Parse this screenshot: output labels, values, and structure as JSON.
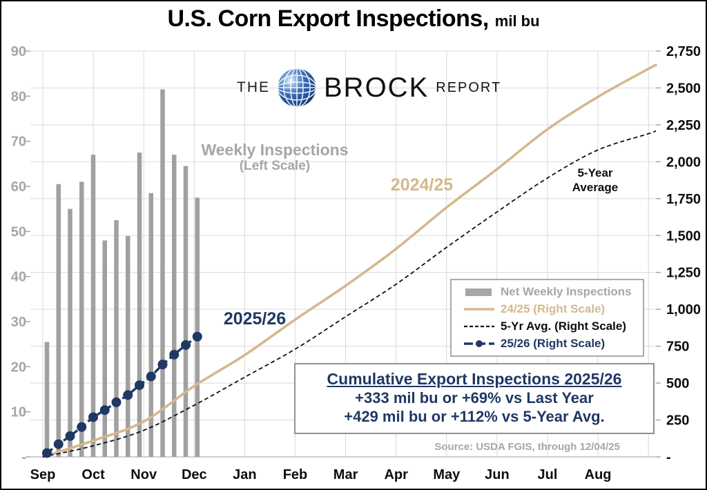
{
  "title": {
    "main": "U.S. Corn Export Inspections,",
    "suffix": "mil bu"
  },
  "logo": {
    "the": "THE",
    "brock": "BROCK",
    "report": "REPORT"
  },
  "annotations": {
    "weekly_line1": "Weekly Inspections",
    "weekly_line2": "(Left Scale)",
    "series_2425": "2024/25",
    "series_2526": "2025/26",
    "avg_line1": "5-Year",
    "avg_line2": "Average"
  },
  "legend": [
    {
      "label": "Net Weekly Inspections",
      "swatch": "bar",
      "color": "#a6a6a6"
    },
    {
      "label": "24/25 (Right Scale)",
      "swatch": "solid",
      "color": "#d3b98c"
    },
    {
      "label": "5-Yr Avg. (Right Scale)",
      "swatch": "dashed",
      "color": "#0d0d0d"
    },
    {
      "label": "25/26 (Right Scale)",
      "swatch": "dashdot",
      "color": "#1f3864"
    }
  ],
  "info_box": {
    "title": "Cumulative Export Inspections 2025/26",
    "line1": "+333 mil bu or +69% vs Last Year",
    "line2": "+429 mil bu or +112% vs 5-Year Avg."
  },
  "source": "Source: USDA FGIS, through 12/04/25",
  "colors": {
    "tan": "#d3b98c",
    "navy": "#1f3864",
    "bar_gray": "#a0a0a0",
    "axis_gray": "#a6a6a6",
    "gridline": "#d9d9d9",
    "baseline": "#bfbfbf",
    "black": "#0d0d0d"
  },
  "chart_data": {
    "type": "combo-bar-line",
    "title": "U.S. Corn Export Inspections, mil bu",
    "x_months": [
      "Sep",
      "Oct",
      "Nov",
      "Dec",
      "Jan",
      "Feb",
      "Mar",
      "Apr",
      "May",
      "Jun",
      "Jul",
      "Aug"
    ],
    "left_axis": {
      "label": "Weekly Inspections (Left Scale)",
      "min": 0,
      "max": 90,
      "tick_step": 10,
      "tick_labels": [
        "90",
        "80",
        "70",
        "60",
        "50",
        "40",
        "30",
        "20",
        "10",
        "-"
      ]
    },
    "right_axis": {
      "min": 0,
      "max": 2750,
      "tick_step": 250,
      "tick_labels": [
        "2,750",
        "2,500",
        "2,250",
        "2,000",
        "1,750",
        "1,500",
        "1,250",
        "1,000",
        "750",
        "500",
        "250",
        "-"
      ]
    },
    "grid": {
      "horizontal": true,
      "vertical": true
    },
    "bars": {
      "name": "Net Weekly Inspections",
      "scale": "left",
      "weeks": [
        1,
        2,
        3,
        4,
        5,
        6,
        7,
        8,
        9,
        10,
        11,
        12,
        13,
        14
      ],
      "values": [
        25.5,
        60.5,
        55,
        61,
        67,
        48,
        52.5,
        49,
        67.5,
        58.5,
        81.5,
        67,
        64.5,
        57.5
      ]
    },
    "series": [
      {
        "name": "24/25 (Right Scale)",
        "scale": "right",
        "style": "solid",
        "color": "#d3b98c",
        "monthly_values": [
          0,
          110,
          240,
          480,
          690,
          930,
          1160,
          1410,
          1690,
          1950,
          2220,
          2440,
          2630
        ],
        "end_value": 2655
      },
      {
        "name": "5-Yr Avg. (Right Scale)",
        "scale": "right",
        "style": "dashed",
        "color": "#0d0d0d",
        "monthly_values": [
          0,
          75,
          180,
          350,
          540,
          730,
          950,
          1170,
          1420,
          1660,
          1890,
          2080,
          2190
        ],
        "end_value": 2210
      },
      {
        "name": "25/26 (Right Scale)",
        "scale": "right",
        "style": "dash-marker",
        "color": "#1f3864",
        "weekly_cumulative": [
          26,
          86,
          141,
          202,
          269,
          317,
          370,
          419,
          486,
          545,
          626,
          693,
          758,
          815
        ]
      }
    ]
  }
}
